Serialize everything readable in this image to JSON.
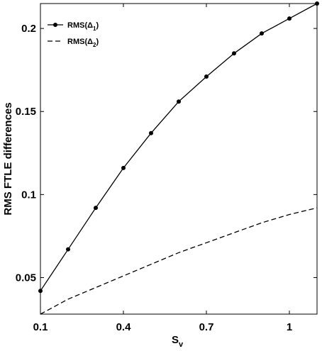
{
  "chart_data": {
    "type": "line",
    "xlabel": "S",
    "xlabel_sub": "v",
    "ylabel": "RMS FTLE differences",
    "xlim": [
      0.1,
      1.1
    ],
    "ylim": [
      0.028,
      0.215
    ],
    "xticks": [
      0.1,
      0.4,
      0.7,
      1.0
    ],
    "xtick_labels": [
      "0.1",
      "0.4",
      "0.7",
      "1"
    ],
    "yticks": [
      0.05,
      0.1,
      0.15,
      0.2
    ],
    "ytick_labels": [
      "0.05",
      "0.1",
      "0.15",
      "0.2"
    ],
    "grid": false,
    "legend_position": "top-left",
    "series": [
      {
        "name": "RMS(Δ1)",
        "legend_main": "RMS(Δ",
        "legend_sub": "1",
        "legend_end": ")",
        "style": "solid-marker",
        "color": "#000000",
        "x": [
          0.1,
          0.2,
          0.3,
          0.4,
          0.5,
          0.6,
          0.7,
          0.8,
          0.9,
          1.0,
          1.1
        ],
        "values": [
          0.042,
          0.067,
          0.092,
          0.116,
          0.137,
          0.156,
          0.171,
          0.185,
          0.197,
          0.206,
          0.215
        ]
      },
      {
        "name": "RMS(Δ2)",
        "legend_main": "RMS(Δ",
        "legend_sub": "2",
        "legend_end": ")",
        "style": "dashed",
        "color": "#000000",
        "x": [
          0.1,
          0.2,
          0.3,
          0.4,
          0.5,
          0.6,
          0.7,
          0.8,
          0.9,
          1.0,
          1.1
        ],
        "values": [
          0.028,
          0.037,
          0.044,
          0.051,
          0.058,
          0.065,
          0.071,
          0.077,
          0.083,
          0.088,
          0.092
        ]
      }
    ]
  }
}
